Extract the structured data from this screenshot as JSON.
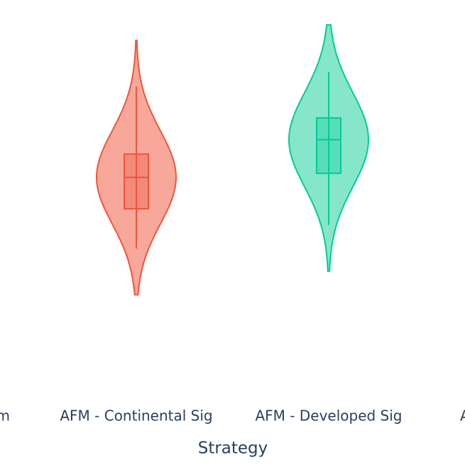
{
  "chart_data": {
    "type": "violin",
    "x_label": "Strategy",
    "categories": [
      "m",
      "AFM - Continental Sig",
      "AFM - Developed Sig",
      "A"
    ],
    "ylim": [
      0,
      10
    ],
    "violins": [
      null,
      {
        "color": "#ef553b",
        "fill": "#f8a89b",
        "top": 9.29,
        "bottom": 2.4,
        "whisker_high": 8.04,
        "whisker_low": 3.65,
        "q3": 6.21,
        "q1": 4.73,
        "median": 5.58
      },
      {
        "color": "#00cc96",
        "fill": "#86e6c9",
        "top": 9.71,
        "bottom": 3.04,
        "whisker_high": 8.44,
        "whisker_low": 4.29,
        "q3": 7.19,
        "q1": 5.69,
        "median": 6.6
      },
      null
    ]
  }
}
